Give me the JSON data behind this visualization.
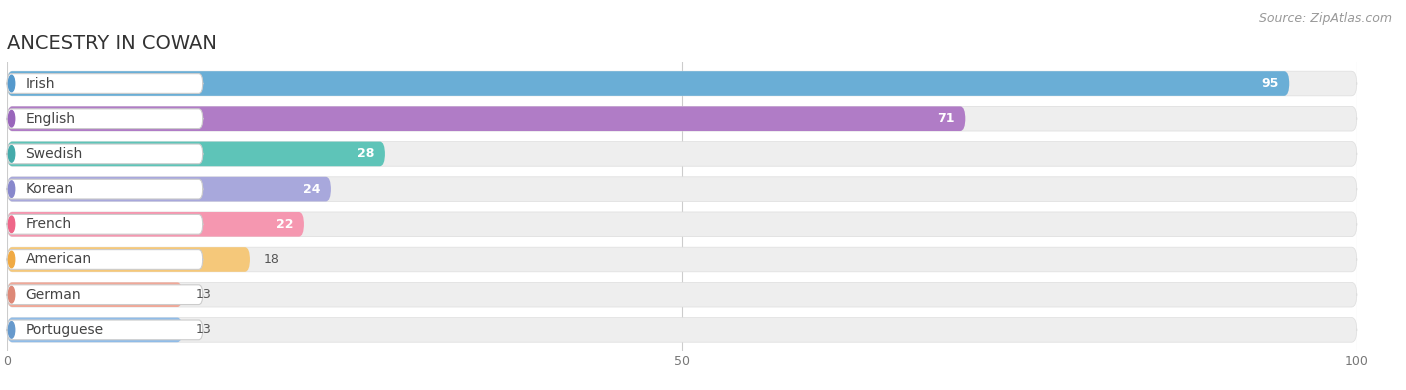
{
  "title": "ANCESTRY IN COWAN",
  "source": "Source: ZipAtlas.com",
  "categories": [
    "Irish",
    "English",
    "Swedish",
    "Korean",
    "French",
    "American",
    "German",
    "Portuguese"
  ],
  "values": [
    95,
    71,
    28,
    24,
    22,
    18,
    13,
    13
  ],
  "bar_colors": [
    "#6aaed6",
    "#b07cc6",
    "#5ec4b8",
    "#a8a8dc",
    "#f597b0",
    "#f5c87a",
    "#f0a898",
    "#90bce8"
  ],
  "bar_bg_color": "#eeeeee",
  "bar_bg_edge_color": "#dddddd",
  "circle_colors": [
    "#5599cc",
    "#9966bb",
    "#44aaaa",
    "#8888cc",
    "#ee6688",
    "#f0aa44",
    "#dd8877",
    "#6699cc"
  ],
  "xlim": [
    0,
    100
  ],
  "xticks": [
    0,
    50,
    100
  ],
  "background_color": "#ffffff",
  "title_fontsize": 14,
  "source_fontsize": 9,
  "bar_label_fontsize": 9,
  "category_fontsize": 10,
  "value_label_threshold": 20
}
